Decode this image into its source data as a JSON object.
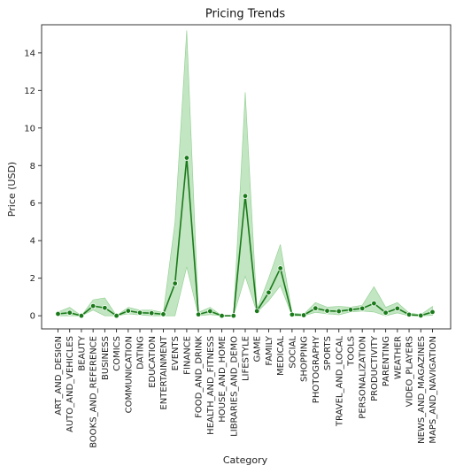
{
  "chart_data": {
    "type": "line",
    "title": "Pricing Trends",
    "xlabel": "Category",
    "ylabel": "Price (USD)",
    "ylim": [
      -0.7,
      15.5
    ],
    "yticks": [
      0,
      2,
      4,
      6,
      8,
      10,
      12,
      14
    ],
    "grid": false,
    "colors": {
      "line": "#1a7a1a",
      "band": "#8fcf8f",
      "marker": "#1a7a1a"
    },
    "categories": [
      "ART_AND_DESIGN",
      "AUTO_AND_VEHICLES",
      "BEAUTY",
      "BOOKS_AND_REFERENCE",
      "BUSINESS",
      "COMICS",
      "COMMUNICATION",
      "DATING",
      "EDUCATION",
      "ENTERTAINMENT",
      "EVENTS",
      "FINANCE",
      "FOOD_AND_DRINK",
      "HEALTH_AND_FITNESS",
      "HOUSE_AND_HOME",
      "LIBRARIES_AND_DEMO",
      "LIFESTYLE",
      "GAME",
      "FAMILY",
      "MEDICAL",
      "SOCIAL",
      "SHOPPING",
      "PHOTOGRAPHY",
      "SPORTS",
      "TRAVEL_AND_LOCAL",
      "TOOLS",
      "PERSONALIZATION",
      "PRODUCTIVITY",
      "PARENTING",
      "WEATHER",
      "VIDEO_PLAYERS",
      "NEWS_AND_MAGAZINES",
      "MAPS_AND_NAVIGATION"
    ],
    "series": [
      {
        "values": [
          0.1,
          0.16,
          0.0,
          0.52,
          0.42,
          0.0,
          0.26,
          0.16,
          0.14,
          0.08,
          1.72,
          8.41,
          0.07,
          0.24,
          0.0,
          0.0,
          6.38,
          0.25,
          1.24,
          2.53,
          0.06,
          0.03,
          0.4,
          0.26,
          0.24,
          0.32,
          0.39,
          0.66,
          0.16,
          0.39,
          0.06,
          0.01,
          0.2
        ],
        "ci_low": [
          0.0,
          0.0,
          0.0,
          0.3,
          0.0,
          0.0,
          0.1,
          0.04,
          0.0,
          0.0,
          0.0,
          2.6,
          0.0,
          0.06,
          0.0,
          0.0,
          2.1,
          0.18,
          0.8,
          1.6,
          0.0,
          0.0,
          0.18,
          0.1,
          0.05,
          0.2,
          0.25,
          0.2,
          0.0,
          0.15,
          0.0,
          0.0,
          0.02
        ],
        "ci_high": [
          0.2,
          0.45,
          0.0,
          0.85,
          0.95,
          0.0,
          0.45,
          0.3,
          0.3,
          0.17,
          5.0,
          15.2,
          0.18,
          0.45,
          0.0,
          0.0,
          11.9,
          0.33,
          2.0,
          3.8,
          0.15,
          0.08,
          0.7,
          0.46,
          0.5,
          0.46,
          0.56,
          1.55,
          0.45,
          0.7,
          0.15,
          0.06,
          0.5
        ]
      }
    ]
  }
}
